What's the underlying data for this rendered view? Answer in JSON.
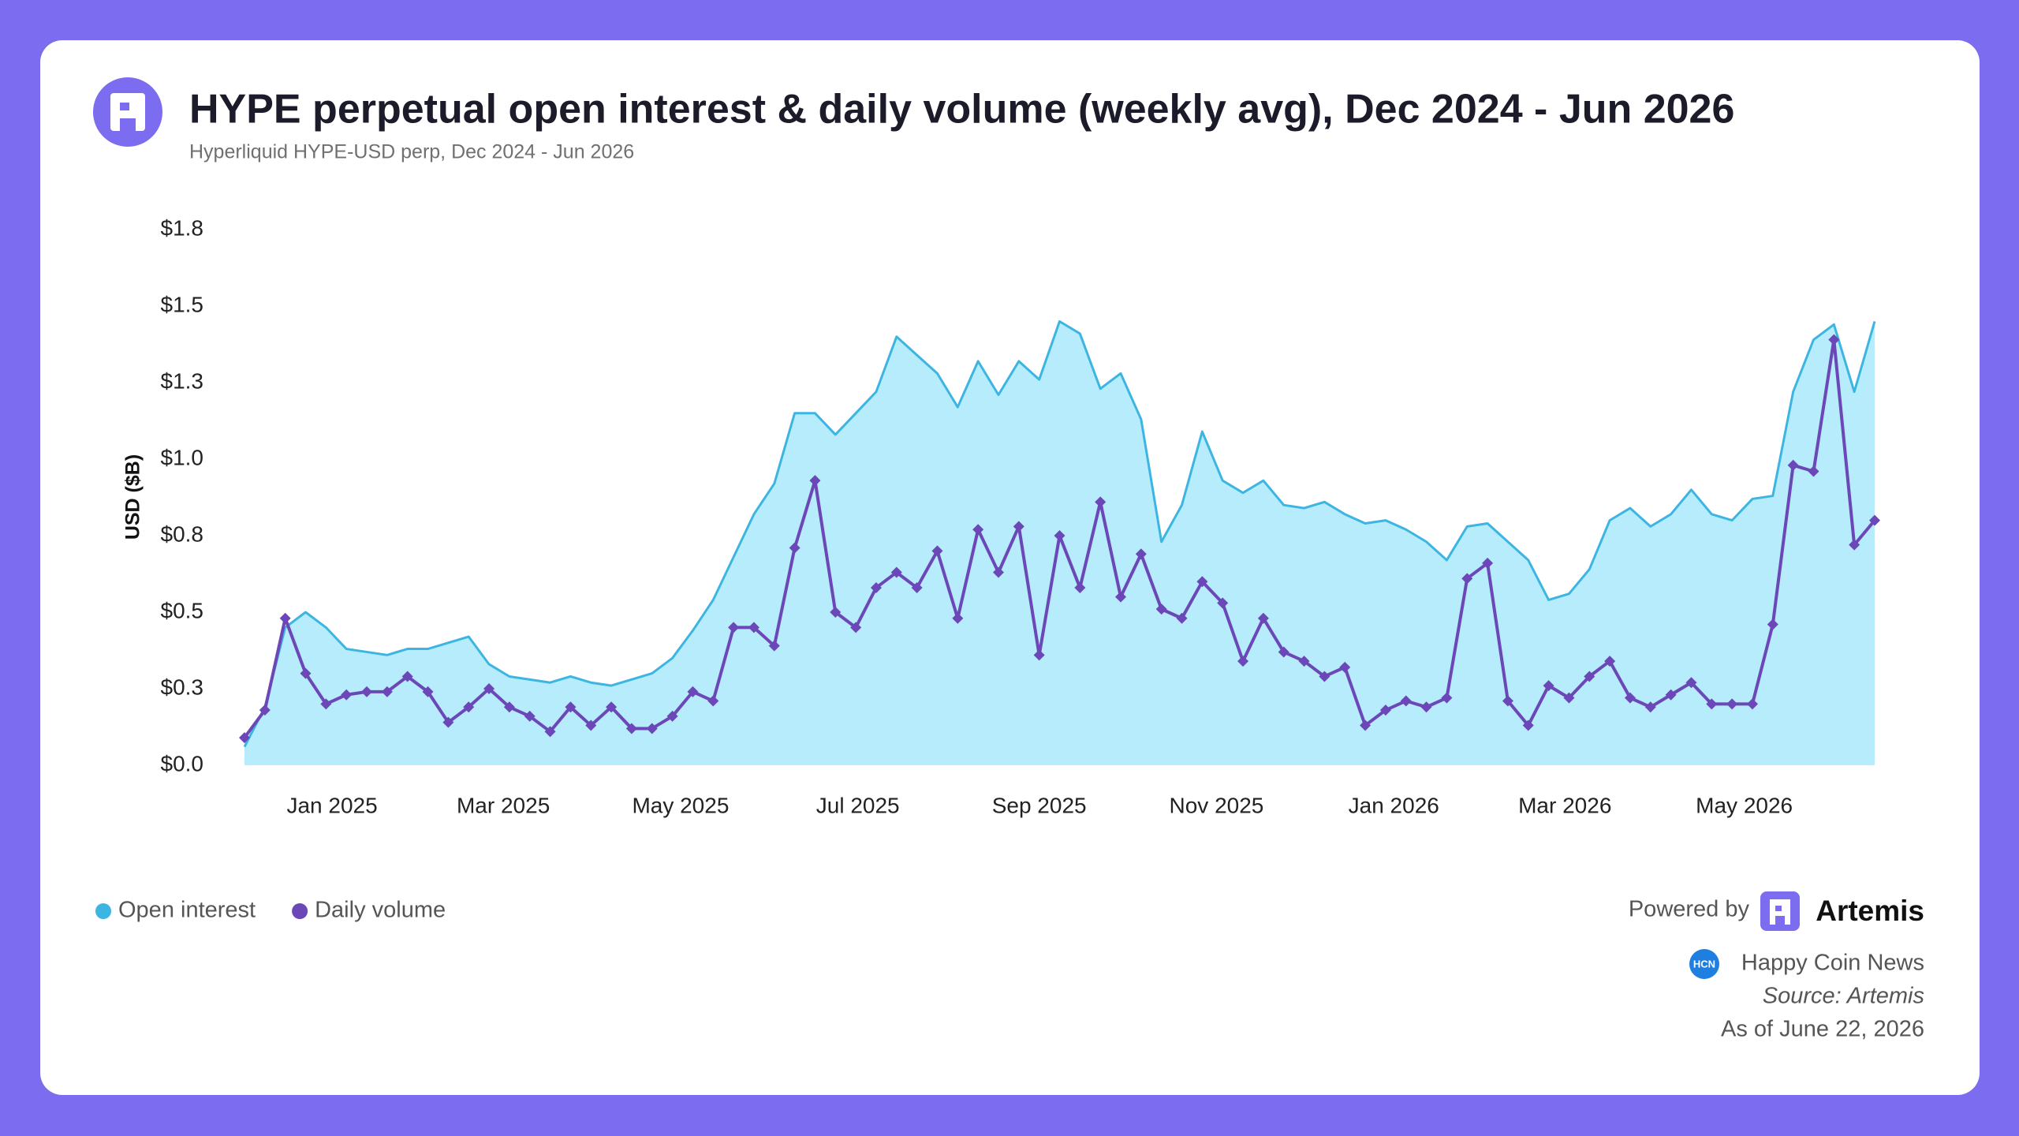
{
  "chart_data": {
    "type": "line",
    "title": "HYPE perpetual open interest & daily volume (weekly avg), Dec 2024 - Jun 2026",
    "subtitle": "Hyperliquid HYPE-USD perp, Dec 2024 - Jun 2026",
    "y_label": "USD ($B)",
    "ylim": [
      0,
      1.75
    ],
    "yticks": [
      {
        "value": 0,
        "label": "$0.0"
      },
      {
        "value": 0.25,
        "label": "$0.3"
      },
      {
        "value": 0.5,
        "label": "$0.5"
      },
      {
        "value": 0.75,
        "label": "$0.8"
      },
      {
        "value": 1.0,
        "label": "$1.0"
      },
      {
        "value": 1.25,
        "label": "$1.3"
      },
      {
        "value": 1.5,
        "label": "$1.5"
      },
      {
        "value": 1.75,
        "label": "$1.8"
      }
    ],
    "xlim": [
      0,
      80
    ],
    "xticks": [
      {
        "value": 4.3,
        "label": "Jan 2025"
      },
      {
        "value": 12.7,
        "label": "Mar 2025"
      },
      {
        "value": 21.4,
        "label": "May 2025"
      },
      {
        "value": 30.1,
        "label": "Jul 2025"
      },
      {
        "value": 39.0,
        "label": "Sep 2025"
      },
      {
        "value": 47.7,
        "label": "Nov 2025"
      },
      {
        "value": 56.4,
        "label": "Jan 2026"
      },
      {
        "value": 64.8,
        "label": "Mar 2026"
      },
      {
        "value": 73.6,
        "label": "May 2026"
      }
    ],
    "grid": false,
    "legend": "bottom-left",
    "series": [
      {
        "name": "Open interest",
        "color": "#3db5e3",
        "fill": "#b6ecfb",
        "area": true,
        "values": [
          0.06,
          0.19,
          0.45,
          0.5,
          0.45,
          0.38,
          0.37,
          0.36,
          0.38,
          0.38,
          0.4,
          0.42,
          0.33,
          0.29,
          0.28,
          0.27,
          0.29,
          0.27,
          0.26,
          0.28,
          0.3,
          0.35,
          0.44,
          0.54,
          0.68,
          0.82,
          0.92,
          1.15,
          1.15,
          1.08,
          1.15,
          1.22,
          1.4,
          1.34,
          1.28,
          1.17,
          1.32,
          1.21,
          1.32,
          1.26,
          1.45,
          1.41,
          1.23,
          1.28,
          1.13,
          0.73,
          0.85,
          1.09,
          0.93,
          0.89,
          0.93,
          0.85,
          0.84,
          0.86,
          0.82,
          0.79,
          0.8,
          0.77,
          0.73,
          0.67,
          0.78,
          0.79,
          0.73,
          0.67,
          0.54,
          0.56,
          0.64,
          0.8,
          0.84,
          0.78,
          0.82,
          0.9,
          0.82,
          0.8,
          0.87,
          0.88,
          1.22,
          1.39,
          1.44,
          1.22,
          1.45
        ]
      },
      {
        "name": "Daily volume",
        "color": "#6b47b8",
        "markers": true,
        "values": [
          0.09,
          0.18,
          0.48,
          0.3,
          0.2,
          0.23,
          0.24,
          0.24,
          0.29,
          0.24,
          0.14,
          0.19,
          0.25,
          0.19,
          0.16,
          0.11,
          0.19,
          0.13,
          0.19,
          0.12,
          0.12,
          0.16,
          0.24,
          0.21,
          0.45,
          0.45,
          0.39,
          0.71,
          0.93,
          0.5,
          0.45,
          0.58,
          0.63,
          0.58,
          0.7,
          0.48,
          0.77,
          0.63,
          0.78,
          0.36,
          0.75,
          0.58,
          0.86,
          0.55,
          0.69,
          0.51,
          0.48,
          0.6,
          0.53,
          0.34,
          0.48,
          0.37,
          0.34,
          0.29,
          0.32,
          0.13,
          0.18,
          0.21,
          0.19,
          0.22,
          0.61,
          0.66,
          0.21,
          0.13,
          0.26,
          0.22,
          0.29,
          0.34,
          0.22,
          0.19,
          0.23,
          0.27,
          0.2,
          0.2,
          0.2,
          0.46,
          0.98,
          0.96,
          1.39,
          0.72,
          0.8
        ]
      }
    ]
  },
  "footer": {
    "powered_by": "Powered by",
    "brand": "Artemis",
    "publisher_badge": "HCN",
    "publisher": "Happy Coin News",
    "source": "Source: Artemis",
    "as_of": "As of June 22, 2026"
  }
}
